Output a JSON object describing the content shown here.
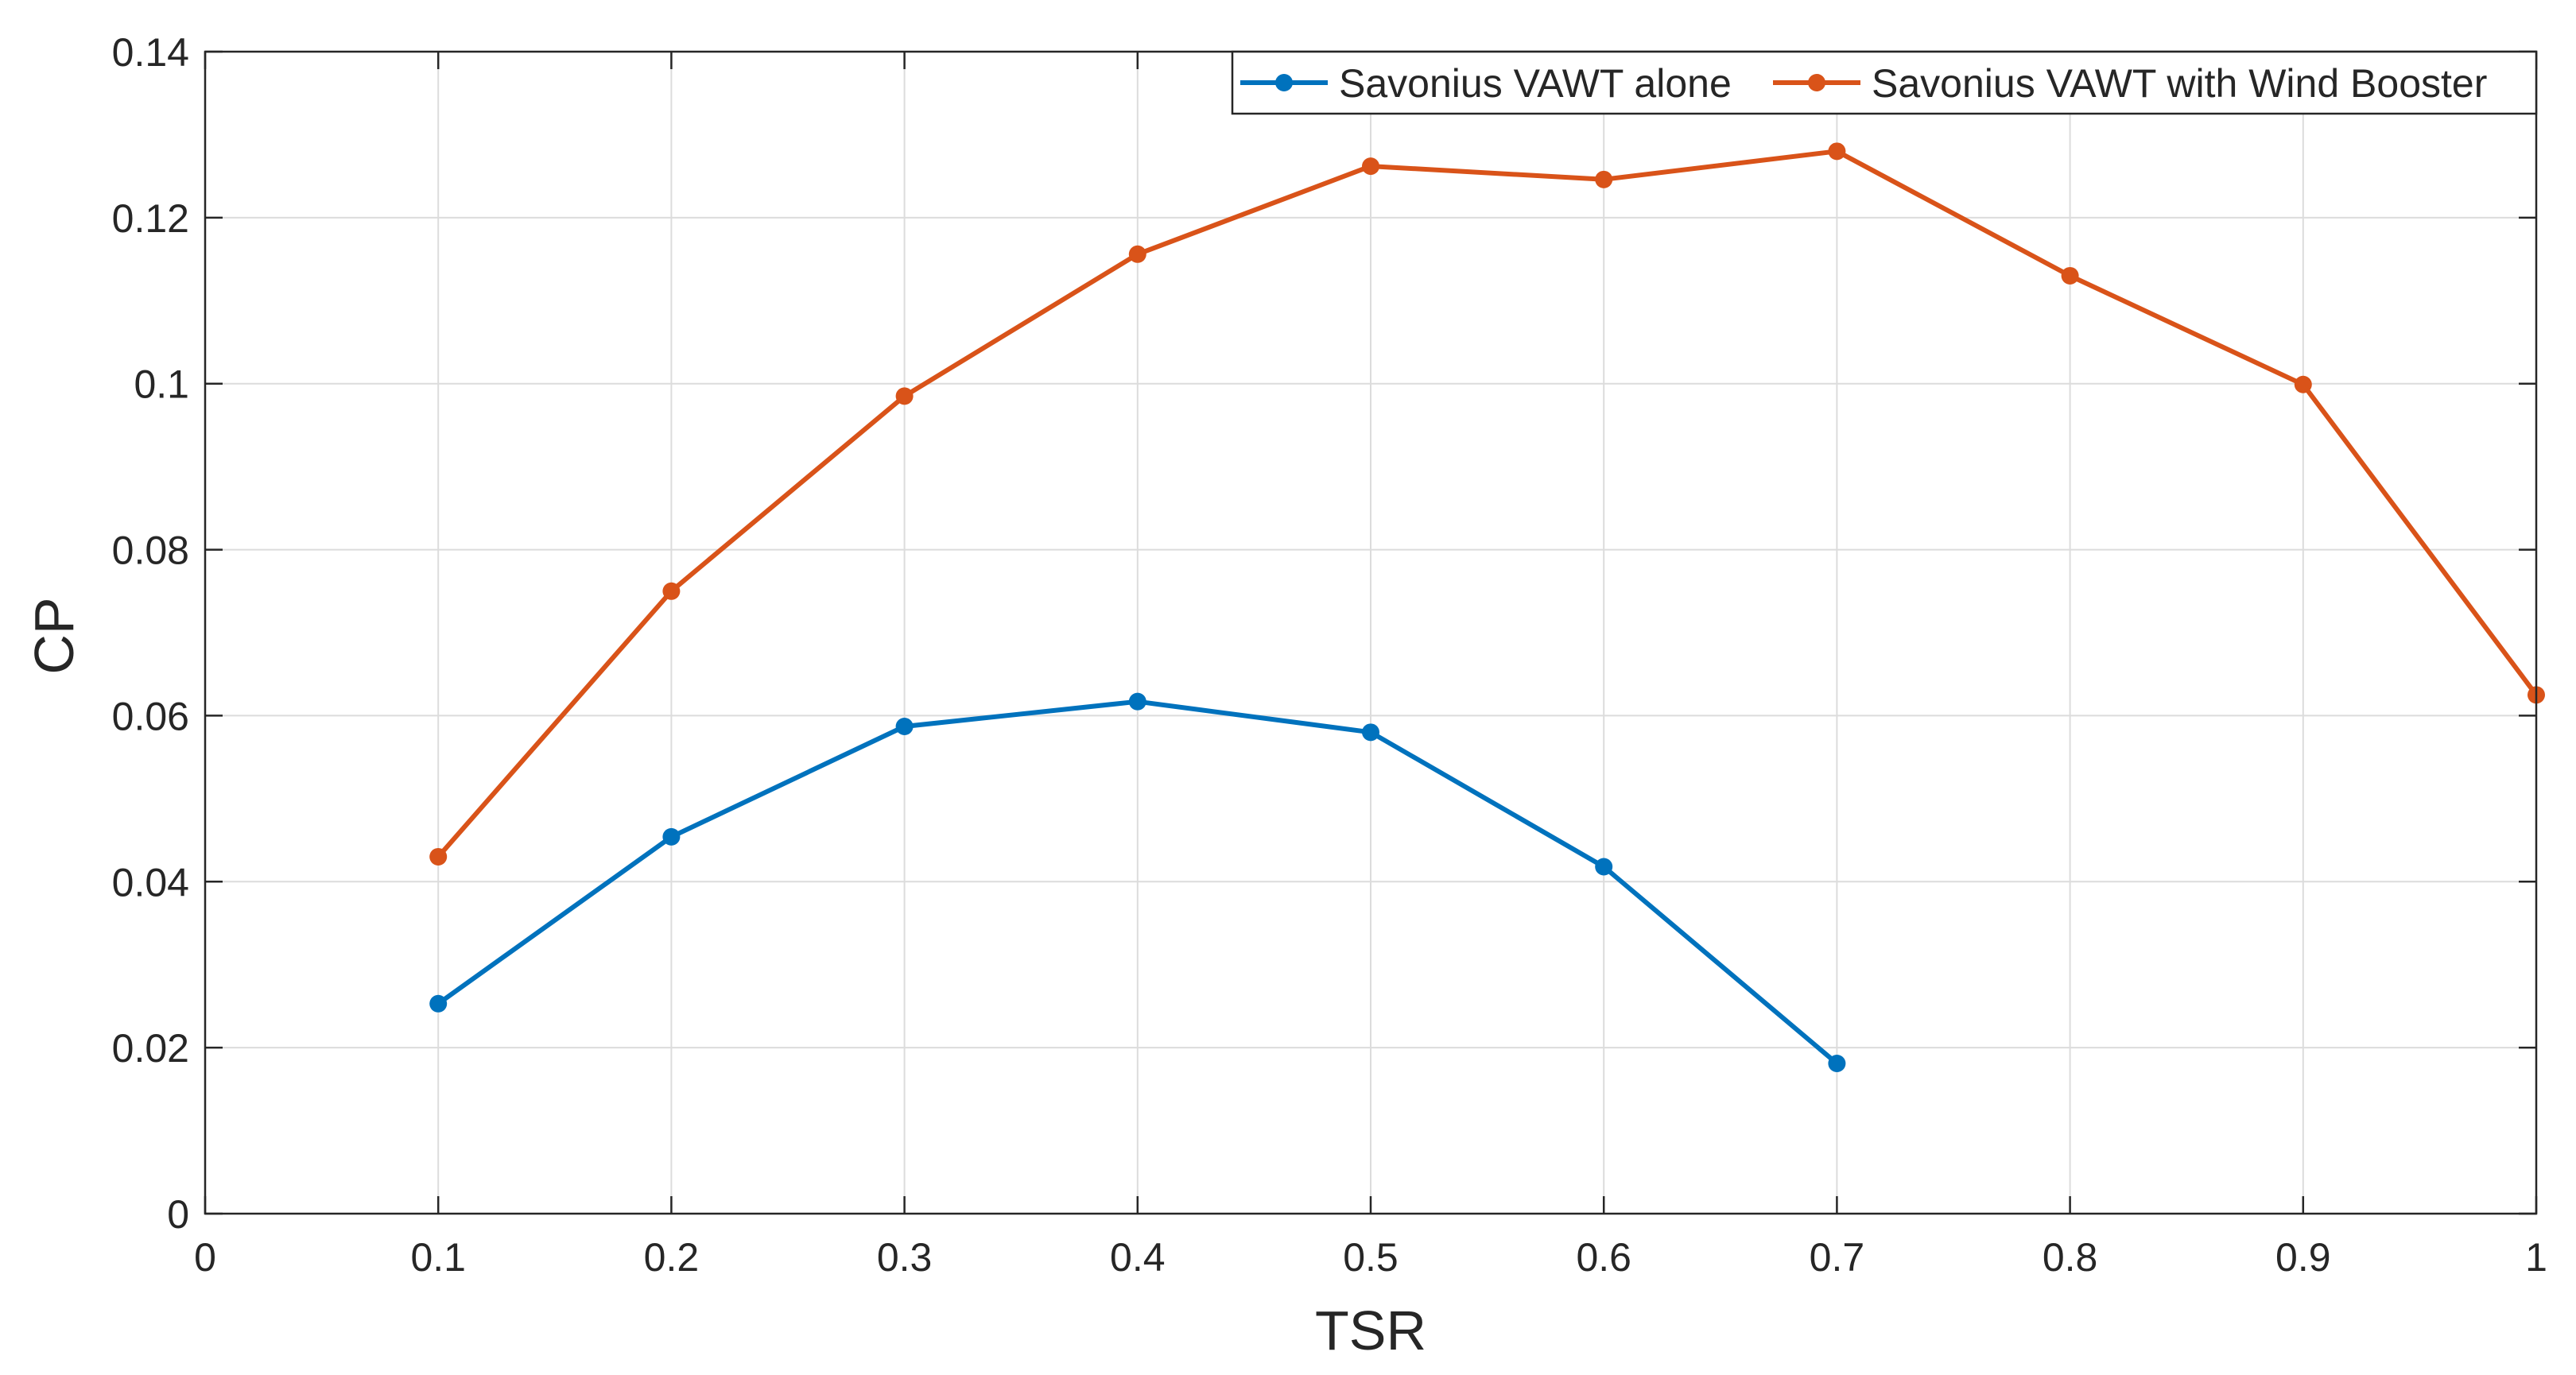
{
  "chart_data": {
    "type": "line",
    "title": "",
    "xlabel": "TSR",
    "ylabel": "CP",
    "xlim": [
      0,
      1
    ],
    "ylim": [
      0,
      0.14
    ],
    "x_ticks": [
      0,
      0.1,
      0.2,
      0.3,
      0.4,
      0.5,
      0.6,
      0.7,
      0.8,
      0.9,
      1
    ],
    "x_tick_labels": [
      "0",
      "0.1",
      "0.2",
      "0.3",
      "0.4",
      "0.5",
      "0.6",
      "0.7",
      "0.8",
      "0.9",
      "1"
    ],
    "y_ticks": [
      0,
      0.02,
      0.04,
      0.06,
      0.08,
      0.1,
      0.12,
      0.14
    ],
    "y_tick_labels": [
      "0",
      "0.02",
      "0.04",
      "0.06",
      "0.08",
      "0.1",
      "0.12",
      "0.14"
    ],
    "grid": true,
    "legend_position": "top-right",
    "series": [
      {
        "name": "Savonius VAWT alone",
        "color": "#0072BD",
        "x": [
          0.1,
          0.2,
          0.3,
          0.4,
          0.5,
          0.6,
          0.7
        ],
        "y": [
          0.0253,
          0.0454,
          0.0587,
          0.0617,
          0.058,
          0.0418,
          0.0181
        ]
      },
      {
        "name": "Savonius VAWT with Wind Booster",
        "color": "#D95319",
        "x": [
          0.1,
          0.2,
          0.3,
          0.4,
          0.5,
          0.6,
          0.7,
          0.8,
          0.9,
          1.0
        ],
        "y": [
          0.043,
          0.075,
          0.0985,
          0.1156,
          0.1262,
          0.1246,
          0.128,
          0.113,
          0.0999,
          0.0625
        ]
      }
    ]
  }
}
